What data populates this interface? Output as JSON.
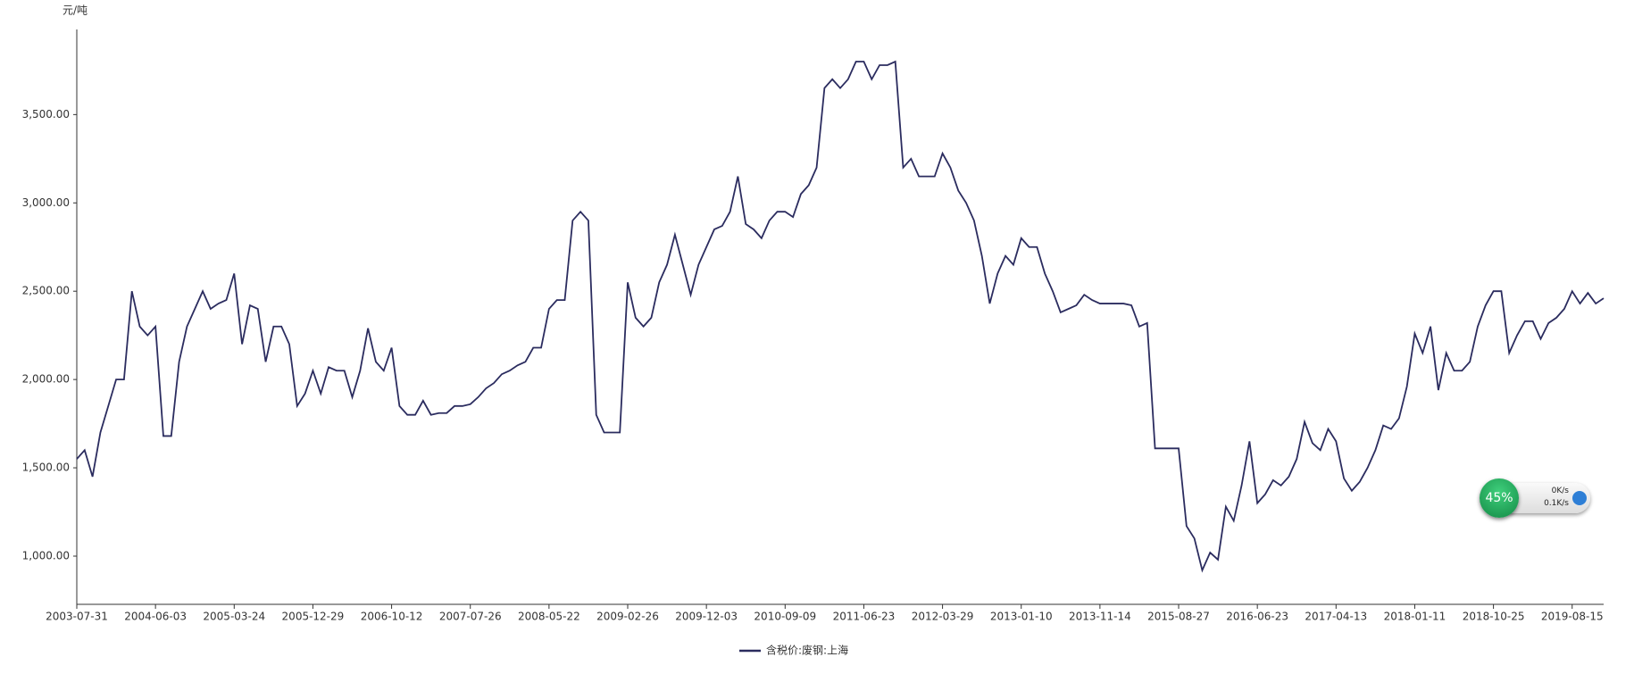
{
  "chart_data": {
    "type": "line",
    "y_unit": "元/吨",
    "categories": [
      "2003-07-31",
      null,
      null,
      null,
      null,
      null,
      null,
      null,
      null,
      null,
      "2004-06-03",
      null,
      null,
      null,
      null,
      null,
      null,
      null,
      null,
      null,
      "2005-03-24",
      null,
      null,
      null,
      null,
      null,
      null,
      null,
      null,
      null,
      "2005-12-29",
      null,
      null,
      null,
      null,
      null,
      null,
      null,
      null,
      null,
      "2006-10-12",
      null,
      null,
      null,
      null,
      null,
      null,
      null,
      null,
      null,
      "2007-07-26",
      null,
      null,
      null,
      null,
      null,
      null,
      null,
      null,
      null,
      "2008-05-22",
      null,
      null,
      null,
      null,
      null,
      null,
      null,
      null,
      null,
      "2009-02-26",
      null,
      null,
      null,
      null,
      null,
      null,
      null,
      null,
      null,
      "2009-12-03",
      null,
      null,
      null,
      null,
      null,
      null,
      null,
      null,
      null,
      "2010-09-09",
      null,
      null,
      null,
      null,
      null,
      null,
      null,
      null,
      null,
      "2011-06-23",
      null,
      null,
      null,
      null,
      null,
      null,
      null,
      null,
      null,
      "2012-03-29",
      null,
      null,
      null,
      null,
      null,
      null,
      null,
      null,
      null,
      "2013-01-10",
      null,
      null,
      null,
      null,
      null,
      null,
      null,
      null,
      null,
      "2013-11-14",
      null,
      null,
      null,
      null,
      null,
      null,
      null,
      null,
      null,
      "2015-08-27",
      null,
      null,
      null,
      null,
      null,
      null,
      null,
      null,
      null,
      "2016-06-23",
      null,
      null,
      null,
      null,
      null,
      null,
      null,
      null,
      null,
      "2017-04-13",
      null,
      null,
      null,
      null,
      null,
      null,
      null,
      null,
      null,
      "2018-01-11",
      null,
      null,
      null,
      null,
      null,
      null,
      null,
      null,
      null,
      "2018-10-25",
      null,
      null,
      null,
      null,
      null,
      null,
      null,
      null,
      null,
      "2019-08-15",
      null,
      null,
      null,
      null
    ],
    "series": [
      {
        "name": "含税价:废钢:上海",
        "color": "#2b2c5f",
        "values": [
          1550,
          1600,
          1450,
          1700,
          1850,
          2000,
          2000,
          2500,
          2300,
          2250,
          2300,
          1680,
          1680,
          2100,
          2300,
          2400,
          2500,
          2400,
          2430,
          2450,
          2600,
          2200,
          2420,
          2400,
          2100,
          2300,
          2300,
          2200,
          1850,
          1920,
          2050,
          1920,
          2070,
          2050,
          2050,
          1900,
          2050,
          2290,
          2100,
          2050,
          2180,
          1850,
          1800,
          1800,
          1880,
          1800,
          1810,
          1810,
          1850,
          1850,
          1860,
          1900,
          1950,
          1980,
          2030,
          2050,
          2080,
          2100,
          2180,
          2180,
          2400,
          2450,
          2450,
          2900,
          2950,
          2900,
          1800,
          1700,
          1700,
          1700,
          2550,
          2350,
          2300,
          2350,
          2550,
          2650,
          2820,
          2650,
          2480,
          2650,
          2750,
          2850,
          2870,
          2950,
          3150,
          2880,
          2850,
          2800,
          2900,
          2950,
          2950,
          2920,
          3050,
          3100,
          3200,
          3650,
          3700,
          3650,
          3700,
          3800,
          3800,
          3700,
          3780,
          3780,
          3800,
          3200,
          3250,
          3150,
          3150,
          3150,
          3280,
          3200,
          3070,
          3000,
          2900,
          2700,
          2430,
          2600,
          2700,
          2650,
          2800,
          2750,
          2750,
          2600,
          2500,
          2380,
          2400,
          2420,
          2480,
          2450,
          2430,
          2430,
          2430,
          2430,
          2420,
          2300,
          2320,
          1610,
          1610,
          1610,
          1610,
          1170,
          1100,
          920,
          1020,
          980,
          1280,
          1200,
          1400,
          1650,
          1300,
          1350,
          1430,
          1400,
          1450,
          1550,
          1760,
          1640,
          1600,
          1720,
          1650,
          1440,
          1370,
          1420,
          1500,
          1600,
          1740,
          1720,
          1780,
          1960,
          2260,
          2150,
          2300,
          1940,
          2150,
          2050,
          2050,
          2100,
          2300,
          2420,
          2500,
          2500,
          2150,
          2250,
          2330,
          2330,
          2230,
          2320,
          2350,
          2400,
          2500,
          2430,
          2490,
          2430,
          2460
        ]
      }
    ],
    "ylim": [
      727,
      3982
    ],
    "yticks": [
      {
        "value": 1000,
        "label": "1,000.00"
      },
      {
        "value": 1500,
        "label": "1,500.00"
      },
      {
        "value": 2000,
        "label": "2,000.00"
      },
      {
        "value": 2500,
        "label": "2,500.00"
      },
      {
        "value": 3000,
        "label": "3,000.00"
      },
      {
        "value": 3500,
        "label": "3,500.00"
      }
    ],
    "grid": false,
    "legend": "bottom"
  },
  "widget": {
    "percent": "45%",
    "upload": "0K/s",
    "download": "0.1K/s"
  }
}
